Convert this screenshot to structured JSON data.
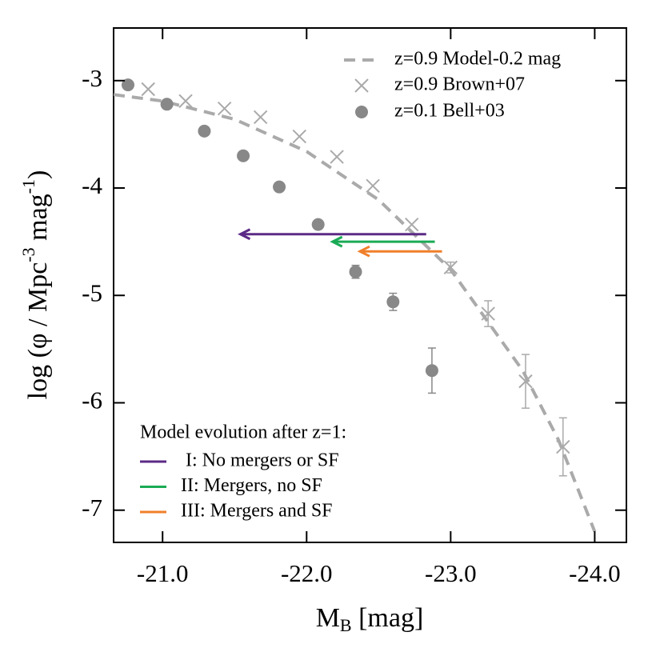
{
  "chart_data": {
    "type": "scatter",
    "xlabel": [
      "M",
      "B",
      " [mag]"
    ],
    "ylabel": [
      "log (φ / Mpc",
      "-3",
      " mag",
      "-1",
      ")"
    ],
    "xlim": [
      -20.66,
      -24.22
    ],
    "ylim": [
      -7.3,
      -2.51
    ],
    "xticks": [
      {
        "value": -21,
        "label": "-21.0"
      },
      {
        "value": -22,
        "label": "-22.0"
      },
      {
        "value": -23,
        "label": "-23.0"
      },
      {
        "value": -24,
        "label": "-24.0"
      }
    ],
    "yticks": [
      -3,
      -4,
      -5,
      -6,
      -7
    ],
    "series": [
      {
        "name": "z=0.9 Model-0.2 mag",
        "type": "line",
        "color": "#aaaaaa",
        "x": [
          -20.66,
          -21.0,
          -21.5,
          -22.0,
          -22.5,
          -23.0,
          -23.5,
          -23.75,
          -24.0
        ],
        "y": [
          -3.13,
          -3.19,
          -3.36,
          -3.66,
          -4.11,
          -4.76,
          -5.7,
          -6.35,
          -7.2
        ]
      },
      {
        "name": "z=0.9 Brown+07",
        "type": "scatter",
        "marker": "cross",
        "color": "#aaaaaa",
        "x": [
          -20.9,
          -21.16,
          -21.43,
          -21.68,
          -21.95,
          -22.21,
          -22.46,
          -22.73,
          -23.0,
          -23.26,
          -23.52,
          -23.78
        ],
        "y": [
          -3.08,
          -3.19,
          -3.26,
          -3.34,
          -3.52,
          -3.71,
          -3.98,
          -4.34,
          -4.74,
          -5.17,
          -5.8,
          -6.41
        ],
        "yerr": [
          null,
          null,
          null,
          null,
          null,
          null,
          null,
          null,
          0.05,
          0.12,
          0.25,
          0.27
        ]
      },
      {
        "name": "z=0.1 Bell+03",
        "type": "scatter",
        "marker": "circle",
        "color": "#888888",
        "x": [
          -20.76,
          -21.03,
          -21.29,
          -21.56,
          -21.81,
          -22.08,
          -22.34,
          -22.6,
          -22.87
        ],
        "y": [
          -3.04,
          -3.22,
          -3.47,
          -3.7,
          -3.99,
          -4.34,
          -4.78,
          -5.06,
          -5.7
        ],
        "yerr": [
          null,
          null,
          null,
          null,
          null,
          null,
          0.06,
          0.08,
          0.21
        ]
      }
    ],
    "arrows_title": "Model evolution after z=1:",
    "arrows": [
      {
        "name": " I: No mergers or SF",
        "color": "#5b2a86",
        "x_start": -22.83,
        "x_end": -21.54,
        "y": -4.43
      },
      {
        "name": "II: Mergers, no SF",
        "color": "#1aaa55",
        "x_start": -22.89,
        "x_end": -22.18,
        "y": -4.5
      },
      {
        "name": "III: Mergers and SF",
        "color": "#f07f2a",
        "x_start": -22.94,
        "x_end": -22.37,
        "y": -4.59
      }
    ]
  }
}
